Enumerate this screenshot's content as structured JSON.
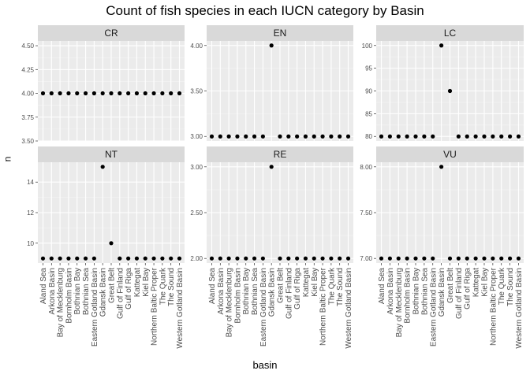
{
  "chart_data": {
    "type": "scatter",
    "title": "Count of fish species in each IUCN category by Basin",
    "xlabel": "basin",
    "ylabel": "n",
    "categories": [
      "Aland Sea",
      "Arkona Basin",
      "Bay of Mecklenburg",
      "Bornholm Basin",
      "Bothnian Bay",
      "Bothnian Sea",
      "Eastern Gotland Basin",
      "Gdansk Basin",
      "Great Belt",
      "Gulf of Finland",
      "Gulf of Riga",
      "Kattegat",
      "Kiel Bay",
      "Northern Baltic Proper",
      "The Quark",
      "The Sound",
      "Western Gotland Basin"
    ],
    "facets": [
      {
        "name": "CR",
        "values": [
          4,
          4,
          4,
          4,
          4,
          4,
          4,
          4,
          4,
          4,
          4,
          4,
          4,
          4,
          4,
          4,
          4
        ],
        "ylim": [
          3.5,
          4.55
        ],
        "yticks": [
          3.5,
          3.75,
          4.0,
          4.25,
          4.5
        ],
        "yticklabels": [
          "3.50",
          "3.75",
          "4.00",
          "4.25",
          "4.50"
        ]
      },
      {
        "name": "EN",
        "values": [
          3,
          3,
          3,
          3,
          3,
          3,
          3,
          4,
          3,
          3,
          3,
          3,
          3,
          3,
          3,
          3,
          3
        ],
        "ylim": [
          2.95,
          4.05
        ],
        "yticks": [
          3.0,
          3.5,
          4.0
        ],
        "yticklabels": [
          "3.00",
          "3.50",
          "4.00"
        ]
      },
      {
        "name": "LC",
        "values": [
          80,
          80,
          80,
          80,
          80,
          80,
          80,
          100,
          90,
          80,
          80,
          80,
          80,
          80,
          80,
          80,
          80
        ],
        "ylim": [
          79,
          101
        ],
        "yticks": [
          80,
          85,
          90,
          95,
          100
        ],
        "yticklabels": [
          "80",
          "85",
          "90",
          "95",
          "100"
        ]
      },
      {
        "name": "NT",
        "values": [
          9,
          9,
          9,
          9,
          9,
          9,
          9,
          15,
          10,
          9,
          9,
          9,
          9,
          9,
          9,
          9,
          9
        ],
        "ylim": [
          8.7,
          15.3
        ],
        "yticks": [
          10,
          12,
          14
        ],
        "yticklabels": [
          "10",
          "12",
          "14"
        ]
      },
      {
        "name": "RE",
        "values": [
          2,
          2,
          2,
          2,
          2,
          2,
          2,
          3,
          2,
          2,
          2,
          2,
          2,
          2,
          2,
          2,
          2
        ],
        "ylim": [
          1.95,
          3.05
        ],
        "yticks": [
          2.0,
          2.5,
          3.0
        ],
        "yticklabels": [
          "2.00",
          "2.50",
          "3.00"
        ]
      },
      {
        "name": "VU",
        "values": [
          7,
          7,
          7,
          7,
          7,
          7,
          7,
          8,
          7,
          7,
          7,
          7,
          7,
          7,
          7,
          7,
          7
        ],
        "ylim": [
          6.95,
          8.05
        ],
        "yticks": [
          7.0,
          7.5,
          8.0
        ],
        "yticklabels": [
          "7.00",
          "7.50",
          "8.00"
        ]
      }
    ],
    "grid": true,
    "colors": {
      "panel_bg": "#ebebeb",
      "strip_bg": "#d9d9d9",
      "grid_major": "#ffffff",
      "point": "#000000"
    }
  }
}
